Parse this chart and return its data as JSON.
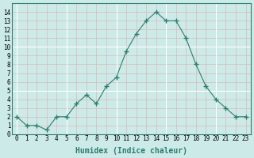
{
  "x": [
    0,
    1,
    2,
    3,
    4,
    5,
    6,
    7,
    8,
    9,
    10,
    11,
    12,
    13,
    14,
    15,
    16,
    17,
    18,
    19,
    20,
    21,
    22,
    23
  ],
  "y": [
    2,
    1,
    1,
    0.5,
    2,
    2,
    3.5,
    4.5,
    3.5,
    5.5,
    6.5,
    9.5,
    11.5,
    13,
    14,
    13,
    13,
    11,
    8,
    5.5,
    4,
    3,
    2,
    2
  ],
  "line_color": "#2e7d6e",
  "marker": "+",
  "marker_size": 4,
  "bg_color": "#cceae7",
  "grid_major_color": "#ffffff",
  "grid_minor_color": "#e8c8c8",
  "xlabel": "Humidex (Indice chaleur)",
  "ylabel": "",
  "xlim": [
    -0.5,
    23.5
  ],
  "ylim": [
    0,
    15
  ],
  "yticks": [
    0,
    1,
    2,
    3,
    4,
    5,
    6,
    7,
    8,
    9,
    10,
    11,
    12,
    13,
    14
  ],
  "xticks": [
    0,
    1,
    2,
    3,
    4,
    5,
    6,
    7,
    8,
    9,
    10,
    11,
    12,
    13,
    14,
    15,
    16,
    17,
    18,
    19,
    20,
    21,
    22,
    23
  ],
  "tick_fontsize": 5.5,
  "xlabel_fontsize": 7,
  "xlabel_color": "#2e7d6e"
}
